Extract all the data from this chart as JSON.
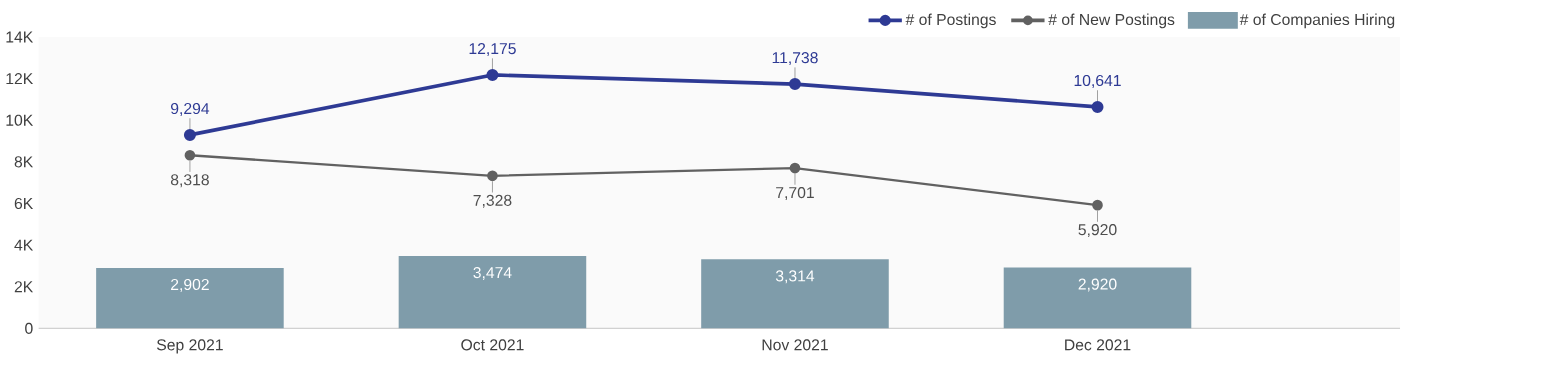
{
  "chart_data": {
    "type": "line",
    "categories": [
      "Sep 2021",
      "Oct 2021",
      "Nov 2021",
      "Dec 2021"
    ],
    "series": [
      {
        "name": "# of Postings",
        "color": "#2e3a94",
        "values": [
          9294,
          12175,
          11738,
          10641
        ],
        "value_labels": [
          "9,294",
          "12,175",
          "11,738",
          "10,641"
        ]
      },
      {
        "name": "# of New Postings",
        "color": "#616161",
        "values": [
          8318,
          7328,
          7701,
          5920
        ],
        "value_labels": [
          "8,318",
          "7,328",
          "7,701",
          "5,920"
        ]
      },
      {
        "name": "# of Companies Hiring",
        "type": "bar",
        "color": "#7f9caa",
        "values": [
          2902,
          3474,
          3314,
          2920
        ],
        "value_labels": [
          "2,902",
          "3,474",
          "3,314",
          "2,920"
        ]
      }
    ],
    "ylim": [
      0,
      14000
    ],
    "yticks": [
      0,
      {
        "value": 2000,
        "label": "2K"
      },
      {
        "value": 4000,
        "label": "4K"
      },
      {
        "value": 6000,
        "label": "6K"
      },
      {
        "value": 8000,
        "label": "8K"
      },
      {
        "value": 10000,
        "label": "10K"
      },
      {
        "value": 12000,
        "label": "12K"
      },
      {
        "value": 14000,
        "label": "14K"
      }
    ],
    "marker": "circle",
    "grid": false,
    "legend": "top right"
  }
}
